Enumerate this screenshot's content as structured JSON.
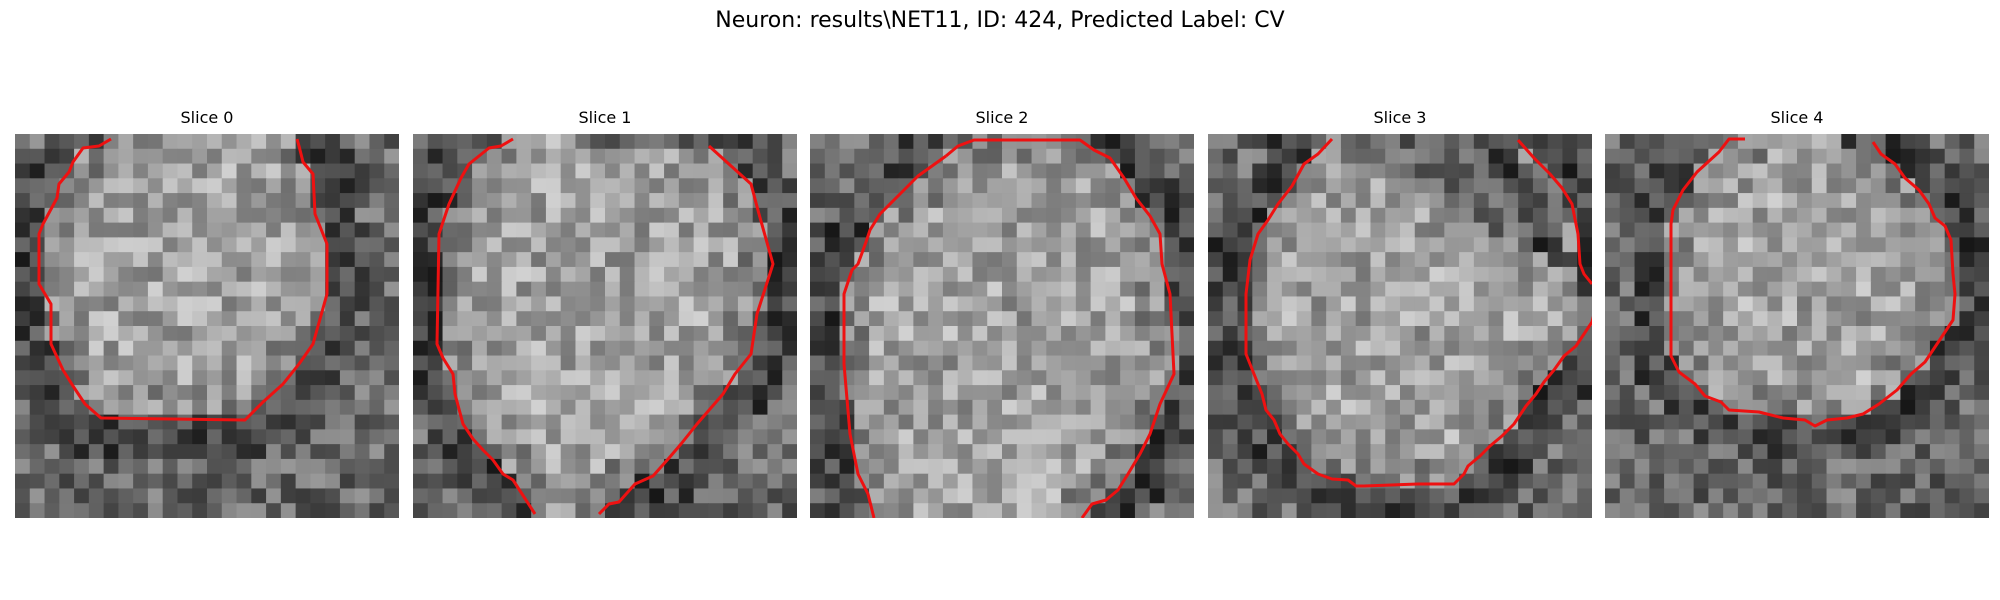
{
  "figure": {
    "title": "Neuron: results\\NET11, ID: 424, Predicted Label: CV"
  },
  "contour_color": "#ee1111",
  "slices": [
    {
      "title": "Slice 0"
    },
    {
      "title": "Slice 1"
    },
    {
      "title": "Slice 2"
    },
    {
      "title": "Slice 3"
    },
    {
      "title": "Slice 4"
    }
  ]
}
